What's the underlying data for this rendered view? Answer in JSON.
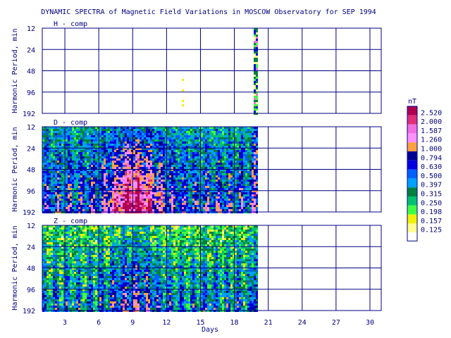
{
  "chart_data": {
    "type": "heatmap",
    "title": "DYNAMIC SPECTRA of Magnetic Field Variations in MOSCOW Observatory for SEP 1994",
    "xlabel": "Days",
    "ylabel": "Harmonic Period, min",
    "xlim": [
      1,
      31
    ],
    "x_ticks": [
      "3",
      "6",
      "9",
      "12",
      "15",
      "18",
      "21",
      "24",
      "27",
      "30"
    ],
    "y_ticks": [
      "12",
      "24",
      "48",
      "96",
      "192"
    ],
    "y_scale": "log2",
    "data_end_day": 19.9,
    "panels": [
      {
        "label": "H - comp",
        "coverage": "only around day 19.6 - 19.9 plus a faint trace near day 13.3",
        "intensity": "mostly blank, strong burst at day 19.6 - 19.9"
      },
      {
        "label": "D - comp",
        "coverage": "days 1 - 19.9",
        "intensity": "strong, peak 2.520 nT near days 7 - 11 at long periods"
      },
      {
        "label": "Z - comp",
        "coverage": "days 1 - 19.9",
        "intensity": "moderate, mostly 0.125 - 0.630 nT"
      }
    ],
    "colorbar": {
      "unit": "nT",
      "levels": [
        "2.520",
        "2.000",
        "1.587",
        "1.260",
        "1.000",
        "0.794",
        "0.630",
        "0.500",
        "0.397",
        "0.315",
        "0.250",
        "0.198",
        "0.157",
        "0.125"
      ],
      "colors": [
        "#b00050",
        "#e0307a",
        "#f070e0",
        "#ff90ff",
        "#ffa040",
        "#000090",
        "#0000e0",
        "#0060ff",
        "#00a0ff",
        "#008040",
        "#00c070",
        "#40ff40",
        "#f0f000",
        "#ffff90"
      ]
    },
    "grid": true
  }
}
